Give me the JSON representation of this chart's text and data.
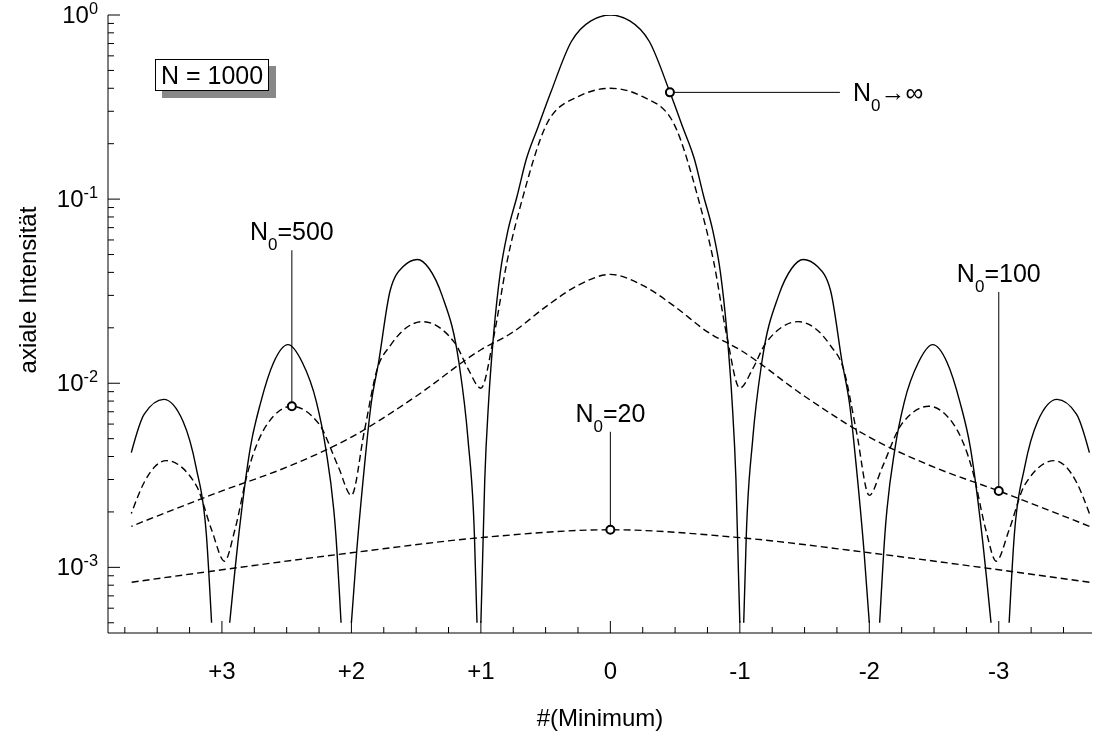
{
  "chart_data": {
    "type": "line",
    "xlabel": "#(Minimum)",
    "ylabel": "axiale Intensität",
    "log": "y",
    "xlim": [
      3.88,
      -3.72
    ],
    "xticks": [
      {
        "value": 3.75,
        "label": null
      },
      {
        "value": 3.5,
        "label": null
      },
      {
        "value": 3.25,
        "label": null
      },
      {
        "value": 3,
        "label": "+3"
      },
      {
        "value": 2.75,
        "label": null
      },
      {
        "value": 2.5,
        "label": null
      },
      {
        "value": 2.25,
        "label": null
      },
      {
        "value": 2,
        "label": "+2"
      },
      {
        "value": 1.75,
        "label": null
      },
      {
        "value": 1.5,
        "label": null
      },
      {
        "value": 1.25,
        "label": null
      },
      {
        "value": 1,
        "label": "+1"
      },
      {
        "value": 0.75,
        "label": null
      },
      {
        "value": 0.5,
        "label": null
      },
      {
        "value": 0.25,
        "label": null
      },
      0,
      {
        "value": -0.25,
        "label": null
      },
      {
        "value": -0.5,
        "label": null
      },
      {
        "value": -0.75,
        "label": null
      },
      -1,
      {
        "value": -1.25,
        "label": null
      },
      {
        "value": -1.5,
        "label": null
      },
      {
        "value": -1.75,
        "label": null
      },
      -2,
      {
        "value": -2.25,
        "label": null
      },
      {
        "value": -2.5,
        "label": null
      },
      {
        "value": -2.75,
        "label": null
      },
      -3,
      {
        "value": -3.25,
        "label": null
      },
      {
        "value": -3.5,
        "label": null
      }
    ],
    "ylim": [
      0.00044,
      1
    ],
    "yticks": [
      {
        "value": 0.0005,
        "label": null
      },
      {
        "value": 0.0006,
        "label": null
      },
      {
        "value": 0.0007,
        "label": null
      },
      {
        "value": 0.0008,
        "label": null
      },
      {
        "value": 0.0009,
        "label": null
      },
      {
        "value": 0.001,
        "label": "10$^{-3}$"
      },
      {
        "value": 0.002,
        "label": null
      },
      {
        "value": 0.003,
        "label": null
      },
      {
        "value": 0.004,
        "label": null
      },
      {
        "value": 0.005,
        "label": null
      },
      {
        "value": 0.006,
        "label": null
      },
      {
        "value": 0.007,
        "label": null
      },
      {
        "value": 0.008,
        "label": null
      },
      {
        "value": 0.009,
        "label": null
      },
      {
        "value": 0.01,
        "label": "10$^{-2}$"
      },
      {
        "value": 0.02,
        "label": null
      },
      {
        "value": 0.03,
        "label": null
      },
      {
        "value": 0.04,
        "label": null
      },
      {
        "value": 0.05,
        "label": null
      },
      {
        "value": 0.06,
        "label": null
      },
      {
        "value": 0.07,
        "label": null
      },
      {
        "value": 0.08,
        "label": null
      },
      {
        "value": 0.09,
        "label": null
      },
      {
        "value": 0.1,
        "label": "10$^{-1}$"
      },
      {
        "value": 0.2,
        "label": null
      },
      {
        "value": 0.3,
        "label": null
      },
      {
        "value": 0.4,
        "label": null
      },
      {
        "value": 0.5,
        "label": null
      },
      {
        "value": 0.6,
        "label": null
      },
      {
        "value": 0.7,
        "label": null
      },
      {
        "value": 0.8,
        "label": null
      },
      {
        "value": 0.9,
        "label": null
      },
      {
        "value": 1,
        "label": "10$^{0}$"
      }
    ],
    "series": [
      {
        "color": "#000000",
        "line_style": "solid",
        "x": [
          -3.7,
          -3.6,
          -3.45,
          -3.3,
          -3.2,
          -3.12,
          -3.08,
          -3.01,
          -2.94,
          -2.87,
          -2.78,
          -2.7,
          -2.6,
          -2.49,
          -2.38,
          -2.27,
          -2.2,
          -2.12,
          -2.08,
          -2.04,
          -2.0,
          -1.96,
          -1.9,
          -1.85,
          -1.79,
          -1.7,
          -1.6,
          -1.49,
          -1.4,
          -1.3,
          -1.17,
          -1.1,
          -1.05,
          -1.03,
          -1.015,
          -1.0,
          -0.99,
          -0.97,
          -0.94,
          -0.9,
          -0.85,
          -0.79,
          -0.72,
          -0.65,
          -0.56,
          -0.46,
          -0.3,
          -0.15,
          0,
          0.15,
          0.3,
          0.46,
          0.56,
          0.65,
          0.72,
          0.79,
          0.85,
          0.9,
          0.94,
          0.97,
          0.99,
          1.0,
          1.015,
          1.03,
          1.05,
          1.1,
          1.17,
          1.3,
          1.4,
          1.49,
          1.6,
          1.7,
          1.79,
          1.85,
          1.9,
          1.96,
          2.0,
          2.04,
          2.08,
          2.12,
          2.2,
          2.27,
          2.38,
          2.49,
          2.6,
          2.7,
          2.78,
          2.87,
          2.94,
          3.01,
          3.08,
          3.12,
          3.2,
          3.3,
          3.45,
          3.6,
          3.7
        ],
        "values": [
          0.0042,
          0.0068,
          0.00817,
          0.0062,
          0.0035,
          0.0015,
          0.0005,
          null,
          0.0005,
          0.0015,
          0.0045,
          0.0079,
          0.013,
          0.0162,
          0.013,
          0.0079,
          0.0045,
          0.0015,
          0.0005,
          null,
          0.0005,
          0.0012,
          0.0035,
          0.0075,
          0.013,
          0.032,
          0.043,
          0.047,
          0.042,
          0.03,
          0.013,
          0.005,
          0.0015,
          0.0005,
          null,
          0.0005,
          0.0009,
          0.003,
          0.008,
          0.019,
          0.04,
          0.068,
          0.104,
          0.164,
          0.245,
          0.38,
          0.72,
          0.93,
          1,
          0.93,
          0.72,
          0.38,
          0.245,
          0.164,
          0.104,
          0.068,
          0.04,
          0.019,
          0.008,
          0.003,
          0.0009,
          0.0005,
          null,
          0.0005,
          0.0015,
          0.005,
          0.013,
          0.03,
          0.042,
          0.047,
          0.043,
          0.032,
          0.013,
          0.0075,
          0.0035,
          0.0012,
          0.0005,
          null,
          0.0005,
          0.0015,
          0.0045,
          0.0079,
          0.013,
          0.0162,
          0.013,
          0.0079,
          0.0045,
          0.0015,
          0.0005,
          null,
          0.0005,
          0.0015,
          0.0035,
          0.0062,
          0.00817,
          0.0068,
          0.0042
        ]
      },
      {
        "color": "#000000",
        "line_style": "dashed",
        "x": [
          -3.7,
          -3.6,
          -3.43,
          -3.2,
          -3.08,
          -2.98,
          -2.9,
          -2.8,
          -2.65,
          -2.46,
          -2.25,
          -2.1,
          -2.0,
          -1.9,
          -1.8,
          -1.7,
          -1.45,
          -1.2,
          -1.1,
          -1.0,
          -0.9,
          -0.8,
          -0.68,
          -0.46,
          -0.25,
          0,
          0.25,
          0.46,
          0.68,
          0.8,
          0.9,
          1.0,
          1.1,
          1.2,
          1.45,
          1.7,
          1.8,
          1.9,
          2.0,
          2.1,
          2.25,
          2.46,
          2.65,
          2.8,
          2.9,
          2.98,
          3.08,
          3.2,
          3.43,
          3.6,
          3.7
        ],
        "values": [
          0.00196,
          0.0029,
          0.0038,
          0.0028,
          0.0016,
          0.00108,
          0.0016,
          0.0033,
          0.006,
          0.0075,
          0.006,
          0.0035,
          0.00246,
          0.0055,
          0.012,
          0.016,
          0.0216,
          0.0165,
          0.012,
          0.0094,
          0.018,
          0.045,
          0.1,
          0.28,
          0.36,
          0.4,
          0.36,
          0.28,
          0.1,
          0.045,
          0.018,
          0.0094,
          0.012,
          0.0165,
          0.0216,
          0.016,
          0.012,
          0.0055,
          0.00246,
          0.0035,
          0.006,
          0.0075,
          0.006,
          0.0033,
          0.0016,
          0.00108,
          0.0016,
          0.0028,
          0.0038,
          0.0029,
          0.00196
        ]
      },
      {
        "color": "#000000",
        "line_style": "dashed",
        "x": [
          -3.7,
          -3.5,
          -3,
          -2.5,
          -2,
          -1.5,
          -1,
          -0.75,
          -0.5,
          -0.25,
          0,
          0.25,
          0.5,
          0.75,
          1,
          1.5,
          2,
          2.5,
          3,
          3.5,
          3.7
        ],
        "values": [
          0.00167,
          0.0019,
          0.0026,
          0.0035,
          0.0051,
          0.0085,
          0.0152,
          0.019,
          0.026,
          0.034,
          0.039,
          0.034,
          0.026,
          0.019,
          0.0152,
          0.0085,
          0.0051,
          0.0035,
          0.0026,
          0.0019,
          0.00167
        ]
      },
      {
        "color": "#000000",
        "line_style": "dashed",
        "x": [
          -3.7,
          -3,
          -2,
          -1,
          0,
          1,
          2,
          3,
          3.7
        ],
        "values": [
          0.00083,
          0.00097,
          0.0012,
          0.00145,
          0.0016,
          0.00145,
          0.0012,
          0.00097,
          0.00083
        ]
      }
    ],
    "annotations": [
      "N = 1000",
      {
        "text": "N$_{0}$→∞",
        "x": -0.46,
        "y": 0.38
      },
      {
        "text": "N$_{0}$=500",
        "x": 2.46,
        "y": 0.0075
      },
      {
        "text": "N$_{0}$=100",
        "x": -3,
        "y": 0.0026
      },
      {
        "text": "N$_{0}$=20",
        "x": 0,
        "y": 0.0016
      }
    ]
  }
}
